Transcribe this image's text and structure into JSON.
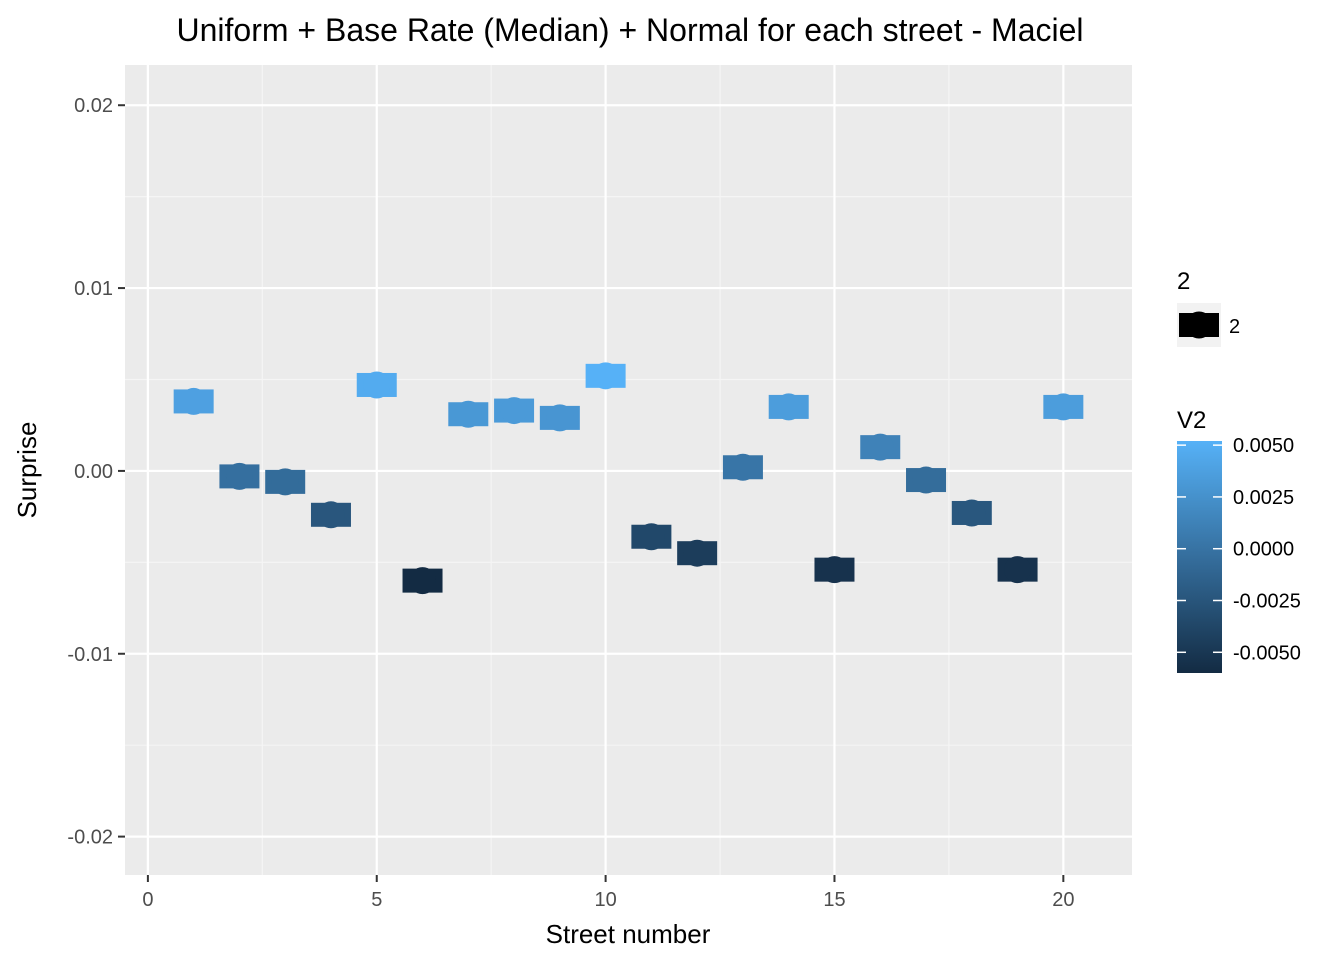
{
  "chart_data": {
    "type": "scatter",
    "title": "Uniform + Base Rate (Median) + Normal for each street - Maciel",
    "xlabel": "Street number",
    "ylabel": "Surprise",
    "xlim": [
      -0.5,
      21.5
    ],
    "ylim": [
      -0.0221,
      0.0222
    ],
    "x_ticks": [
      0,
      5,
      10,
      15,
      20
    ],
    "x_tick_labels": [
      "0",
      "5",
      "10",
      "15",
      "20"
    ],
    "y_ticks": [
      -0.02,
      -0.01,
      0.0,
      0.01,
      0.02
    ],
    "y_tick_labels": [
      "-0.02",
      "-0.01",
      "0.00",
      "0.01",
      "0.02"
    ],
    "grid": true,
    "legend_position": "right",
    "series": [
      {
        "name": "2",
        "x": [
          1,
          2,
          3,
          4,
          5,
          6,
          7,
          8,
          9,
          10,
          11,
          12,
          13,
          14,
          15,
          16,
          17,
          18,
          19,
          20
        ],
        "y": [
          0.0038,
          -0.0003,
          -0.0006,
          -0.0024,
          0.0047,
          -0.006,
          0.0031,
          0.0033,
          0.0029,
          0.0052,
          -0.0036,
          -0.0045,
          0.0002,
          0.0035,
          -0.0054,
          0.0013,
          -0.0005,
          -0.0023,
          -0.0054,
          0.0035
        ],
        "color_value": [
          0.0038,
          -0.0003,
          -0.0006,
          -0.0024,
          0.0047,
          -0.006,
          0.0031,
          0.0033,
          0.0029,
          0.0052,
          -0.0036,
          -0.0045,
          0.0002,
          0.0035,
          -0.0054,
          0.0013,
          -0.0005,
          -0.0023,
          -0.0054,
          0.0035
        ]
      }
    ],
    "shape_legend": {
      "title": "2",
      "items": [
        "2"
      ]
    },
    "color_legend": {
      "title": "V2",
      "range": [
        -0.006,
        0.0052
      ],
      "breaks": [
        0.005,
        0.0025,
        0.0,
        -0.0025,
        -0.005
      ],
      "break_labels": [
        "0.0050",
        "0.0025",
        "0.0000",
        "-0.0025",
        "-0.0050"
      ],
      "low_color": "#132b43",
      "high_color": "#56b1f7"
    },
    "colors": {
      "panel_background": "#ebebeb",
      "grid_major": "#ffffff",
      "grid_minor": "#f5f5f5",
      "tick": "#333333"
    }
  }
}
